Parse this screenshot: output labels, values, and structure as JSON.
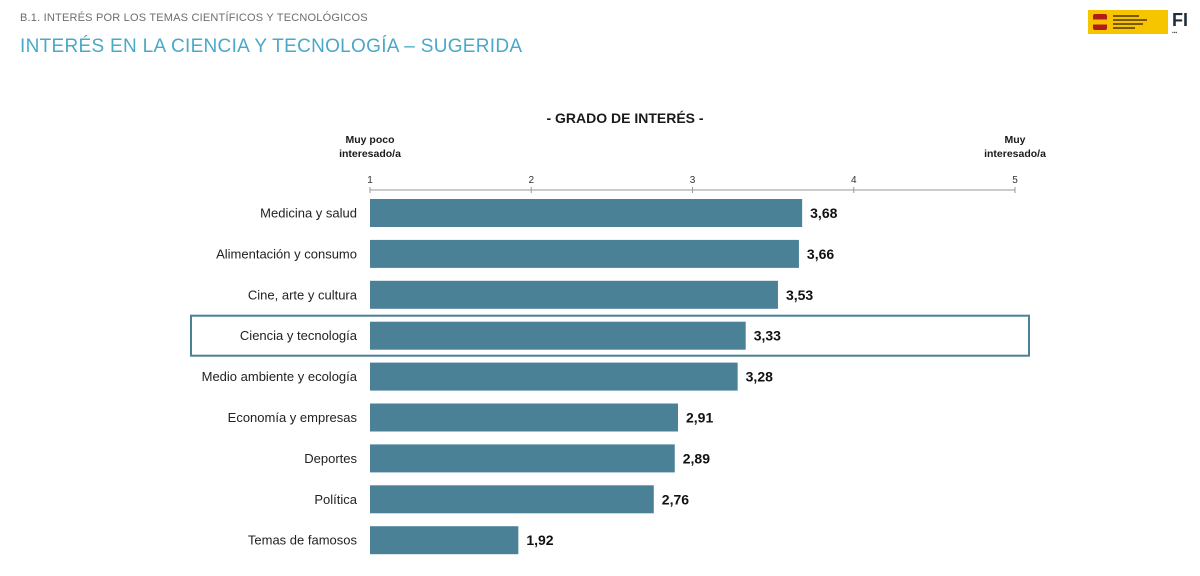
{
  "header": {
    "section_label": "B.1. INTERÉS POR LOS TEMAS CIENTÍFICOS Y TECNOLÓGICOS",
    "title": "INTERÉS EN LA CIENCIA Y TECNOLOGÍA – SUGERIDA",
    "logo_text": "FI"
  },
  "colors": {
    "bar": "#4b8197",
    "highlight_border": "#4b8197",
    "title": "#4aa8c8"
  },
  "chart_data": {
    "type": "bar",
    "orientation": "horizontal",
    "title": "- GRADO DE INTERÉS -",
    "scale_min_label": [
      "Muy poco",
      "interesado/a"
    ],
    "scale_max_label": [
      "Muy",
      "interesado/a"
    ],
    "xlim": [
      1,
      5
    ],
    "ticks": [
      "1",
      "2",
      "3",
      "4",
      "5"
    ],
    "categories": [
      "Medicina y salud",
      "Alimentación y consumo",
      "Cine, arte y cultura",
      "Ciencia y tecnología",
      "Medio ambiente y ecología",
      "Economía y empresas",
      "Deportes",
      "Política",
      "Temas de famosos"
    ],
    "values": [
      3.68,
      3.66,
      3.53,
      3.33,
      3.28,
      2.91,
      2.89,
      2.76,
      1.92
    ],
    "value_labels": [
      "3,68",
      "3,66",
      "3,53",
      "3,33",
      "3,28",
      "2,91",
      "2,89",
      "2,76",
      "1,92"
    ],
    "highlighted_category": "Ciencia y tecnología",
    "grid": false
  }
}
